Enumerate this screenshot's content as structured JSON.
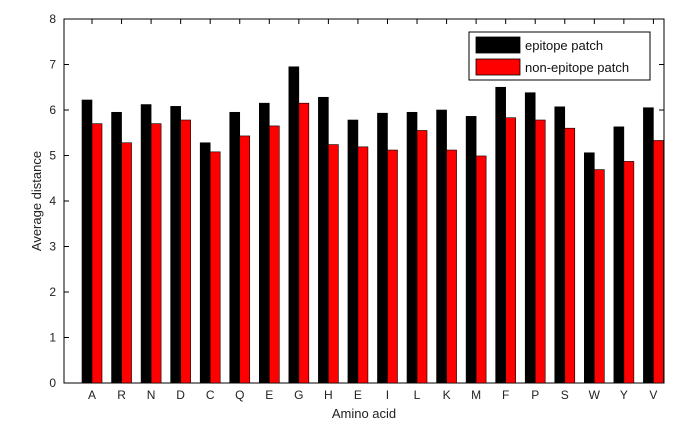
{
  "chart_data": {
    "type": "bar",
    "title": "",
    "xlabel": "Amino acid",
    "ylabel": "Average distance",
    "ylim": [
      0,
      8
    ],
    "yticks": [
      0,
      1,
      2,
      3,
      4,
      5,
      6,
      7,
      8
    ],
    "grid": false,
    "legend_position": "top-right",
    "categories": [
      "A",
      "R",
      "N",
      "D",
      "C",
      "Q",
      "E",
      "G",
      "H",
      "E",
      "I",
      "L",
      "K",
      "M",
      "F",
      "P",
      "S",
      "W",
      "Y",
      "V"
    ],
    "series": [
      {
        "name": "epitope patch",
        "color": "#000000",
        "values": [
          6.22,
          5.95,
          6.12,
          6.08,
          5.28,
          5.95,
          6.15,
          6.95,
          6.28,
          5.78,
          5.93,
          5.95,
          6.0,
          5.86,
          6.5,
          6.38,
          6.07,
          5.06,
          5.63,
          6.05
        ]
      },
      {
        "name": "non-epitope patch",
        "color": "#ff0000",
        "values": [
          5.7,
          5.28,
          5.7,
          5.78,
          5.08,
          5.43,
          5.65,
          6.15,
          5.24,
          5.19,
          5.12,
          5.55,
          5.12,
          4.99,
          5.83,
          5.78,
          5.6,
          4.69,
          4.87,
          5.33
        ]
      }
    ]
  }
}
